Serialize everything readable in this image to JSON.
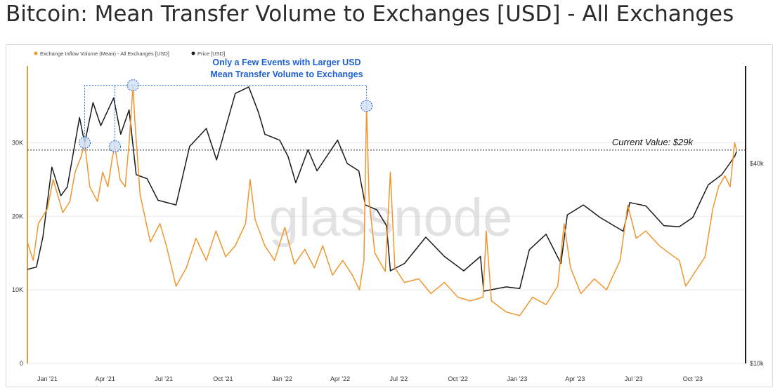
{
  "title": "Bitcoin: Mean Transfer Volume to Exchanges [USD] - All Exchanges",
  "watermark": "glassnode",
  "legend": {
    "inflow": "Exchange Inflow Volume (Mean) - All Exchanges [USD]",
    "price": "Price [USD]"
  },
  "annotation": {
    "line1": "Only a Few Events with Larger USD",
    "line2": "Mean Transfer Volume to Exchanges"
  },
  "current_value": "Current Value: $29k",
  "colors": {
    "inflow": "#f0962e",
    "price": "#1a1a1a",
    "annotation": "#1f5fd6",
    "marker_fill": "#cfe0f6",
    "grid": "#e8e8e8"
  },
  "chart_data": {
    "type": "line",
    "x_ticks": [
      "Jan '21",
      "Apr '21",
      "Jul '21",
      "Oct '21",
      "Jan '22",
      "Apr '22",
      "Jul '22",
      "Oct '22",
      "Jan '23",
      "Apr '23",
      "Jul '23",
      "Oct '23"
    ],
    "y_left_ticks": [
      "0",
      "10K",
      "20K",
      "30K"
    ],
    "y_right_ticks": [
      "$10k",
      "$40k"
    ],
    "x_range": [
      "2020-12-01",
      "2023-12-22"
    ],
    "y_left_range": [
      0,
      39000
    ],
    "y_right_scale": "log",
    "current_value": 29000,
    "series": [
      {
        "name": "Exchange Inflow Volume (Mean) - All Exchanges [USD]",
        "axis": "left",
        "points": [
          [
            "2020-12-01",
            16500
          ],
          [
            "2020-12-10",
            14000
          ],
          [
            "2020-12-18",
            19000
          ],
          [
            "2021-01-01",
            21000
          ],
          [
            "2021-01-10",
            25000
          ],
          [
            "2021-01-25",
            20500
          ],
          [
            "2021-02-05",
            22000
          ],
          [
            "2021-02-13",
            26000
          ],
          [
            "2021-02-22",
            28000
          ],
          [
            "2021-02-28",
            30000
          ],
          [
            "2021-03-08",
            24000
          ],
          [
            "2021-03-20",
            22000
          ],
          [
            "2021-03-28",
            26000
          ],
          [
            "2021-04-05",
            24000
          ],
          [
            "2021-04-12",
            28000
          ],
          [
            "2021-04-16",
            29500
          ],
          [
            "2021-04-24",
            25000
          ],
          [
            "2021-05-02",
            24000
          ],
          [
            "2021-05-08",
            30000
          ],
          [
            "2021-05-12",
            35000
          ],
          [
            "2021-05-14",
            37800
          ],
          [
            "2021-05-17",
            33000
          ],
          [
            "2021-05-25",
            23000
          ],
          [
            "2021-06-10",
            16500
          ],
          [
            "2021-06-25",
            19000
          ],
          [
            "2021-07-05",
            16000
          ],
          [
            "2021-07-20",
            10500
          ],
          [
            "2021-08-05",
            13000
          ],
          [
            "2021-08-20",
            17000
          ],
          [
            "2021-09-05",
            14000
          ],
          [
            "2021-09-20",
            18000
          ],
          [
            "2021-10-05",
            14500
          ],
          [
            "2021-10-20",
            16000
          ],
          [
            "2021-11-05",
            19000
          ],
          [
            "2021-11-12",
            25000
          ],
          [
            "2021-11-20",
            19500
          ],
          [
            "2021-12-05",
            16000
          ],
          [
            "2021-12-20",
            14000
          ],
          [
            "2022-01-05",
            18500
          ],
          [
            "2022-01-20",
            13500
          ],
          [
            "2022-02-05",
            15500
          ],
          [
            "2022-02-20",
            13000
          ],
          [
            "2022-03-05",
            16000
          ],
          [
            "2022-03-20",
            12000
          ],
          [
            "2022-04-05",
            14000
          ],
          [
            "2022-04-20",
            12000
          ],
          [
            "2022-05-01",
            10000
          ],
          [
            "2022-05-08",
            14000
          ],
          [
            "2022-05-12",
            35000
          ],
          [
            "2022-05-16",
            22000
          ],
          [
            "2022-05-25",
            15000
          ],
          [
            "2022-06-10",
            12500
          ],
          [
            "2022-06-18",
            26000
          ],
          [
            "2022-06-25",
            13000
          ],
          [
            "2022-07-10",
            11000
          ],
          [
            "2022-08-01",
            11500
          ],
          [
            "2022-08-20",
            9500
          ],
          [
            "2022-09-10",
            11000
          ],
          [
            "2022-10-01",
            9000
          ],
          [
            "2022-10-20",
            8500
          ],
          [
            "2022-11-09",
            9000
          ],
          [
            "2022-11-14",
            18000
          ],
          [
            "2022-11-22",
            8500
          ],
          [
            "2022-12-15",
            7000
          ],
          [
            "2023-01-05",
            6500
          ],
          [
            "2023-01-25",
            9000
          ],
          [
            "2023-02-15",
            8000
          ],
          [
            "2023-03-05",
            10500
          ],
          [
            "2023-03-15",
            19000
          ],
          [
            "2023-03-25",
            13000
          ],
          [
            "2023-04-10",
            9500
          ],
          [
            "2023-05-01",
            11500
          ],
          [
            "2023-05-20",
            10000
          ],
          [
            "2023-06-10",
            14000
          ],
          [
            "2023-06-22",
            21500
          ],
          [
            "2023-07-05",
            17000
          ],
          [
            "2023-07-20",
            18000
          ],
          [
            "2023-08-10",
            16000
          ],
          [
            "2023-08-25",
            15000
          ],
          [
            "2023-09-10",
            14000
          ],
          [
            "2023-09-20",
            10500
          ],
          [
            "2023-10-05",
            12500
          ],
          [
            "2023-10-20",
            14500
          ],
          [
            "2023-11-01",
            21000
          ],
          [
            "2023-11-10",
            24000
          ],
          [
            "2023-11-20",
            25500
          ],
          [
            "2023-11-28",
            24000
          ],
          [
            "2023-12-05",
            30000
          ],
          [
            "2023-12-08",
            29000
          ]
        ]
      },
      {
        "name": "Price [USD]",
        "axis": "right",
        "points": [
          [
            "2020-12-01",
            19200
          ],
          [
            "2020-12-15",
            19500
          ],
          [
            "2020-12-25",
            24000
          ],
          [
            "2021-01-08",
            39000
          ],
          [
            "2021-01-22",
            32000
          ],
          [
            "2021-02-01",
            34000
          ],
          [
            "2021-02-20",
            55000
          ],
          [
            "2021-02-28",
            46000
          ],
          [
            "2021-03-13",
            61000
          ],
          [
            "2021-03-25",
            52000
          ],
          [
            "2021-04-14",
            63000
          ],
          [
            "2021-04-25",
            49000
          ],
          [
            "2021-05-08",
            58000
          ],
          [
            "2021-05-19",
            37000
          ],
          [
            "2021-06-05",
            36000
          ],
          [
            "2021-06-22",
            31000
          ],
          [
            "2021-07-20",
            30000
          ],
          [
            "2021-08-10",
            45000
          ],
          [
            "2021-09-05",
            51000
          ],
          [
            "2021-09-21",
            41000
          ],
          [
            "2021-10-20",
            65000
          ],
          [
            "2021-11-10",
            68000
          ],
          [
            "2021-11-25",
            57000
          ],
          [
            "2021-12-05",
            49000
          ],
          [
            "2021-12-28",
            47000
          ],
          [
            "2022-01-10",
            42000
          ],
          [
            "2022-01-22",
            35000
          ],
          [
            "2022-02-10",
            44000
          ],
          [
            "2022-02-24",
            38000
          ],
          [
            "2022-03-28",
            47000
          ],
          [
            "2022-04-12",
            40000
          ],
          [
            "2022-04-30",
            38000
          ],
          [
            "2022-05-10",
            30000
          ],
          [
            "2022-05-28",
            29000
          ],
          [
            "2022-06-12",
            26000
          ],
          [
            "2022-06-18",
            19000
          ],
          [
            "2022-07-10",
            20000
          ],
          [
            "2022-08-12",
            24000
          ],
          [
            "2022-09-10",
            21000
          ],
          [
            "2022-10-10",
            19000
          ],
          [
            "2022-11-05",
            21000
          ],
          [
            "2022-11-10",
            16500
          ],
          [
            "2022-12-15",
            17000
          ],
          [
            "2023-01-05",
            16800
          ],
          [
            "2023-01-20",
            22000
          ],
          [
            "2023-02-15",
            24500
          ],
          [
            "2023-03-10",
            20000
          ],
          [
            "2023-03-20",
            28000
          ],
          [
            "2023-04-14",
            30000
          ],
          [
            "2023-05-10",
            27500
          ],
          [
            "2023-06-15",
            25000
          ],
          [
            "2023-06-25",
            30500
          ],
          [
            "2023-07-20",
            29800
          ],
          [
            "2023-08-17",
            26000
          ],
          [
            "2023-09-10",
            25800
          ],
          [
            "2023-10-01",
            27500
          ],
          [
            "2023-10-25",
            34500
          ],
          [
            "2023-11-15",
            37000
          ],
          [
            "2023-12-05",
            42000
          ],
          [
            "2023-12-08",
            43500
          ]
        ]
      }
    ]
  }
}
